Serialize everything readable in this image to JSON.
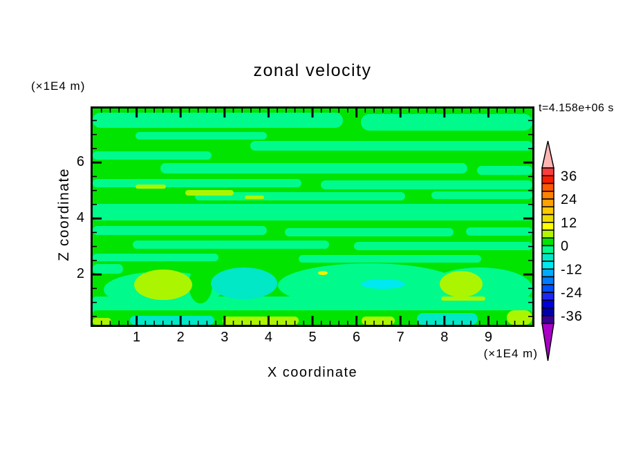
{
  "chart_data": {
    "type": "heatmap",
    "title": "zonal velocity",
    "time_annotation": "t=4.158e+06 s",
    "xlabel": "X coordinate",
    "ylabel": "Z coordinate",
    "x_unit_label": "(×1E4 m)",
    "y_unit_label": "(×1E4 m)",
    "frame_color": "#000000",
    "x_axis": {
      "range": [
        0,
        10
      ],
      "major_ticks": [
        1,
        2,
        3,
        4,
        5,
        6,
        7,
        8,
        9
      ],
      "tick_labels": [
        "1",
        "2",
        "3",
        "4",
        "5",
        "6",
        "7",
        "8",
        "9"
      ],
      "minor_step": 0.2
    },
    "y_axis": {
      "range": [
        0.2,
        7.93
      ],
      "major_ticks": [
        2,
        4,
        6
      ],
      "tick_labels": [
        "2",
        "4",
        "6"
      ],
      "minor_step": 0.5
    },
    "colorbar": {
      "value_range": [
        -40,
        40
      ],
      "level_step": 4,
      "tick_values": [
        36,
        24,
        12,
        0,
        -12,
        -24,
        -36
      ],
      "tick_labels": [
        "36",
        "24",
        "12",
        "0",
        "-12",
        "-24",
        "-36"
      ],
      "segment_colors_top_to_bottom": [
        "#FB3C3C",
        "#F81E00",
        "#FF5A00",
        "#FF8200",
        "#FFA200",
        "#FFC800",
        "#EEDC00",
        "#FFFF00",
        "#B4F500",
        "#00E400",
        "#00FA8C",
        "#00E8C6",
        "#00E9F0",
        "#00AAFF",
        "#007DFF",
        "#0050FF",
        "#1E28F5",
        "#0000DC",
        "#0000AA",
        "#3C0096"
      ],
      "over_arrow_color": "#FFB4B4",
      "under_arrow_color": "#AA00C8"
    },
    "field": {
      "background_key": "green",
      "palette": {
        "green": "#00E400",
        "spring": "#00FA8C",
        "chartreuse": "#ACF500",
        "yellow": "#F2F200",
        "aqua": "#00E8C6",
        "cyan": "#00E9F0"
      },
      "level_meaning": {
        "green": "0 to 4",
        "spring": "-4 to 0",
        "chartreuse": "4 to 8",
        "yellow": "8 to 12",
        "aqua": "-8 to -4",
        "cyan": "-12 to -8"
      },
      "shapes": [
        {
          "r": [
            0,
            6,
            362,
            22
          ],
          "c": "spring"
        },
        {
          "r": [
            388,
            8,
            248,
            24
          ],
          "c": "spring"
        },
        {
          "r": [
            62,
            34,
            190,
            11
          ],
          "c": "spring"
        },
        {
          "r": [
            228,
            47,
            408,
            14
          ],
          "c": "spring"
        },
        {
          "r": [
            0,
            62,
            172,
            12
          ],
          "c": "spring"
        },
        {
          "r": [
            98,
            79,
            444,
            15
          ],
          "c": "spring"
        },
        {
          "r": [
            556,
            83,
            80,
            13
          ],
          "c": "spring"
        },
        {
          "r": [
            0,
            102,
            302,
            12
          ],
          "c": "spring"
        },
        {
          "r": [
            330,
            104,
            306,
            13
          ],
          "c": "spring"
        },
        {
          "r": [
            148,
            121,
            304,
            12
          ],
          "c": "spring"
        },
        {
          "r": [
            490,
            120,
            146,
            11
          ],
          "c": "spring"
        },
        {
          "r": [
            0,
            138,
            636,
            24
          ],
          "c": "spring",
          "sq": 1
        },
        {
          "r": [
            0,
            170,
            252,
            13
          ],
          "c": "spring"
        },
        {
          "r": [
            278,
            173,
            244,
            12
          ],
          "c": "spring"
        },
        {
          "r": [
            540,
            172,
            96,
            12
          ],
          "c": "spring"
        },
        {
          "r": [
            58,
            191,
            284,
            12
          ],
          "c": "spring"
        },
        {
          "r": [
            378,
            193,
            258,
            12
          ],
          "c": "spring"
        },
        {
          "r": [
            0,
            210,
            182,
            11
          ],
          "c": "spring"
        },
        {
          "r": [
            298,
            212,
            264,
            11
          ],
          "c": "spring"
        },
        {
          "r": [
            0,
            225,
            44,
            14
          ],
          "c": "spring"
        },
        {
          "r": [
            0,
            272,
            636,
            28
          ],
          "c": "spring",
          "sq": 1
        },
        {
          "e": [
            400,
            256,
            132,
            32
          ],
          "c": "spring"
        },
        {
          "e": [
            102,
            262,
            86,
            26
          ],
          "c": "spring"
        },
        {
          "e": [
            560,
            260,
            76,
            30
          ],
          "c": "spring"
        },
        {
          "r": [
            139,
            228,
            34,
            54
          ],
          "c": "green"
        },
        {
          "r": [
            0,
            292,
            636,
            21
          ],
          "c": "green",
          "sq": 1
        },
        {
          "e": [
            102,
            255,
            42,
            22
          ],
          "c": "chartreuse"
        },
        {
          "e": [
            219,
            253,
            48,
            23
          ],
          "c": "aqua"
        },
        {
          "e": [
            420,
            254,
            32,
            7
          ],
          "c": "cyan"
        },
        {
          "e": [
            533,
            254,
            31,
            19
          ],
          "c": "chartreuse"
        },
        {
          "e": [
            333,
            238,
            7,
            3
          ],
          "c": "yellow"
        },
        {
          "r": [
            62,
            110,
            44,
            6
          ],
          "c": "chartreuse"
        },
        {
          "r": [
            134,
            118,
            70,
            8
          ],
          "c": "chartreuse"
        },
        {
          "r": [
            220,
            126,
            28,
            5
          ],
          "c": "chartreuse"
        },
        {
          "r": [
            504,
            272,
            64,
            6
          ],
          "c": "chartreuse"
        },
        {
          "r": [
            54,
            300,
            122,
            13
          ],
          "c": "aqua"
        },
        {
          "r": [
            188,
            301,
            110,
            12
          ],
          "c": "chartreuse"
        },
        {
          "r": [
            389,
            301,
            48,
            12
          ],
          "c": "chartreuse"
        },
        {
          "r": [
            469,
            296,
            88,
            17
          ],
          "c": "aqua"
        },
        {
          "r": [
            599,
            292,
            37,
            21
          ],
          "c": "chartreuse"
        },
        {
          "r": [
            0,
            303,
            27,
            10
          ],
          "c": "chartreuse"
        }
      ]
    }
  }
}
